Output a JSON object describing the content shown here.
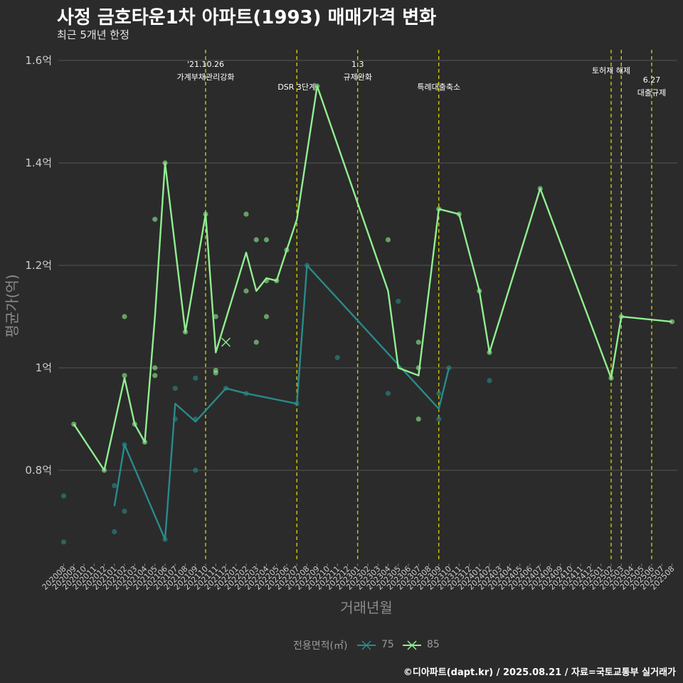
{
  "title": "사정 금호타운1차 아파트(1993) 매매가격 변화",
  "subtitle": "최근 5개년 한정",
  "credit": "©디아파트(dapt.kr) / 2025.08.21 / 자료=국토교통부 실거래가",
  "colors": {
    "background": "#2b2b2b",
    "grid": "#555555",
    "vline": "#e5e500",
    "s75": "#2a8a8a",
    "s85": "#90ee90",
    "axis_text": "#cccccc",
    "axis_title": "#8c8c8c"
  },
  "chart_data": {
    "type": "line",
    "title": "사정 금호타운1차 아파트(1993) 매매가격 변화",
    "subtitle": "최근 5개년 한정",
    "xlabel": "거래년월",
    "ylabel": "평균가(억)",
    "ylim": [
      0.62,
      1.63
    ],
    "grid": true,
    "legend_position": "bottom",
    "legend_title": "전용면적(㎡)",
    "x_ticks": [
      "202008",
      "202009",
      "202010",
      "202011",
      "202012",
      "202101",
      "202102",
      "202103",
      "202104",
      "202105",
      "202106",
      "202107",
      "202108",
      "202109",
      "202110",
      "202111",
      "202112",
      "202201",
      "202202",
      "202203",
      "202204",
      "202205",
      "202206",
      "202207",
      "202208",
      "202209",
      "202210",
      "202211",
      "202212",
      "202301",
      "202302",
      "202303",
      "202304",
      "202305",
      "202306",
      "202307",
      "202308",
      "202309",
      "202310",
      "202311",
      "202312",
      "202401",
      "202402",
      "202403",
      "202404",
      "202405",
      "202406",
      "202407",
      "202408",
      "202409",
      "202410",
      "202411",
      "202412",
      "202501",
      "202502",
      "202503",
      "202504",
      "202505",
      "202506",
      "202507",
      "202508"
    ],
    "y_ticks": [
      {
        "value": 0.8,
        "label": "0.8억"
      },
      {
        "value": 1.0,
        "label": "1억"
      },
      {
        "value": 1.2,
        "label": "1.2억"
      },
      {
        "value": 1.4,
        "label": "1.4억"
      },
      {
        "value": 1.6,
        "label": "1.6억"
      }
    ],
    "series": [
      {
        "name": "75",
        "color": "#2a8a8a",
        "line": [
          [
            "202101",
            0.73
          ],
          [
            "202102",
            0.85
          ],
          [
            "202106",
            0.665
          ],
          [
            "202107",
            0.93
          ],
          [
            "202109",
            0.895
          ],
          [
            "202112",
            0.96
          ],
          [
            "202202",
            0.95
          ],
          [
            "202207",
            0.93
          ],
          [
            "202208",
            1.2
          ],
          [
            "202309",
            0.92
          ],
          [
            "202310",
            1.0
          ]
        ],
        "points": [
          [
            "202008",
            0.75
          ],
          [
            "202008",
            0.66
          ],
          [
            "202101",
            0.77
          ],
          [
            "202101",
            0.68
          ],
          [
            "202102",
            0.72
          ],
          [
            "202102",
            0.85
          ],
          [
            "202106",
            0.665
          ],
          [
            "202107",
            0.96
          ],
          [
            "202107",
            0.9
          ],
          [
            "202109",
            0.98
          ],
          [
            "202109",
            0.9
          ],
          [
            "202109",
            0.8
          ],
          [
            "202112",
            0.96
          ],
          [
            "202202",
            0.95
          ],
          [
            "202207",
            0.93
          ],
          [
            "202208",
            1.2
          ],
          [
            "202211",
            1.02
          ],
          [
            "202304",
            0.95
          ],
          [
            "202305",
            1.13
          ],
          [
            "202309",
            0.95
          ],
          [
            "202309",
            0.9
          ],
          [
            "202310",
            1.0
          ],
          [
            "202402",
            0.975
          ]
        ]
      },
      {
        "name": "85",
        "color": "#90ee90",
        "line": [
          [
            "202009",
            0.89
          ],
          [
            "202012",
            0.8
          ],
          [
            "202102",
            0.98
          ],
          [
            "202103",
            0.89
          ],
          [
            "202104",
            0.855
          ],
          [
            "202105",
            1.1
          ],
          [
            "202106",
            1.4
          ],
          [
            "202108",
            1.07
          ],
          [
            "202110",
            1.3
          ],
          [
            "202111",
            1.03
          ],
          [
            "202202",
            1.225
          ],
          [
            "202203",
            1.15
          ],
          [
            "202204",
            1.175
          ],
          [
            "202205",
            1.17
          ],
          [
            "202206",
            1.23
          ],
          [
            "202207",
            1.29
          ],
          [
            "202209",
            1.55
          ],
          [
            "202304",
            1.15
          ],
          [
            "202305",
            1.0
          ],
          [
            "202307",
            0.985
          ],
          [
            "202309",
            1.31
          ],
          [
            "202311",
            1.3
          ],
          [
            "202401",
            1.15
          ],
          [
            "202402",
            1.03
          ],
          [
            "202407",
            1.35
          ],
          [
            "202502",
            0.98
          ],
          [
            "202503",
            1.1
          ],
          [
            "202508",
            1.09
          ]
        ],
        "points": [
          [
            "202009",
            0.89
          ],
          [
            "202012",
            0.8
          ],
          [
            "202102",
            0.985
          ],
          [
            "202102",
            1.1
          ],
          [
            "202103",
            0.89
          ],
          [
            "202104",
            0.855
          ],
          [
            "202105",
            1.29
          ],
          [
            "202105",
            1.0
          ],
          [
            "202105",
            0.985
          ],
          [
            "202106",
            1.4
          ],
          [
            "202108",
            1.07
          ],
          [
            "202110",
            1.3
          ],
          [
            "202111",
            1.1
          ],
          [
            "202111",
            0.995
          ],
          [
            "202111",
            0.99
          ],
          [
            "202202",
            1.3
          ],
          [
            "202202",
            1.15
          ],
          [
            "202203",
            1.25
          ],
          [
            "202203",
            1.05
          ],
          [
            "202204",
            1.25
          ],
          [
            "202204",
            1.17
          ],
          [
            "202204",
            1.1
          ],
          [
            "202205",
            1.17
          ],
          [
            "202206",
            1.23
          ],
          [
            "202209",
            1.55
          ],
          [
            "202304",
            1.25
          ],
          [
            "202307",
            1.05
          ],
          [
            "202307",
            0.9
          ],
          [
            "202307",
            1.0
          ],
          [
            "202309",
            1.31
          ],
          [
            "202311",
            1.3
          ],
          [
            "202401",
            1.15
          ],
          [
            "202402",
            1.03
          ],
          [
            "202407",
            1.35
          ],
          [
            "202502",
            0.98
          ],
          [
            "202503",
            1.1
          ],
          [
            "202508",
            1.09
          ]
        ],
        "cross_points": [
          [
            "202112",
            1.05
          ]
        ]
      }
    ],
    "event_lines": [
      {
        "x": "202110",
        "label": [
          "'21.10.26",
          "가계부채관리강화"
        ]
      },
      {
        "x": "202207",
        "label": [
          "DSR 3단계"
        ]
      },
      {
        "x": "202301",
        "label": [
          "1.3",
          "규제완화"
        ]
      },
      {
        "x": "202309",
        "label": [
          "특례대출축소"
        ]
      },
      {
        "x": "202502",
        "label": [
          "토허제 해제"
        ]
      },
      {
        "x": "202503",
        "label": []
      },
      {
        "x": "202506",
        "label": [
          "6.27",
          "대출규제"
        ]
      }
    ]
  },
  "legend": {
    "title": "전용면적(㎡)",
    "items": [
      {
        "label": "75",
        "color": "#2a8a8a"
      },
      {
        "label": "85",
        "color": "#90ee90"
      }
    ]
  }
}
